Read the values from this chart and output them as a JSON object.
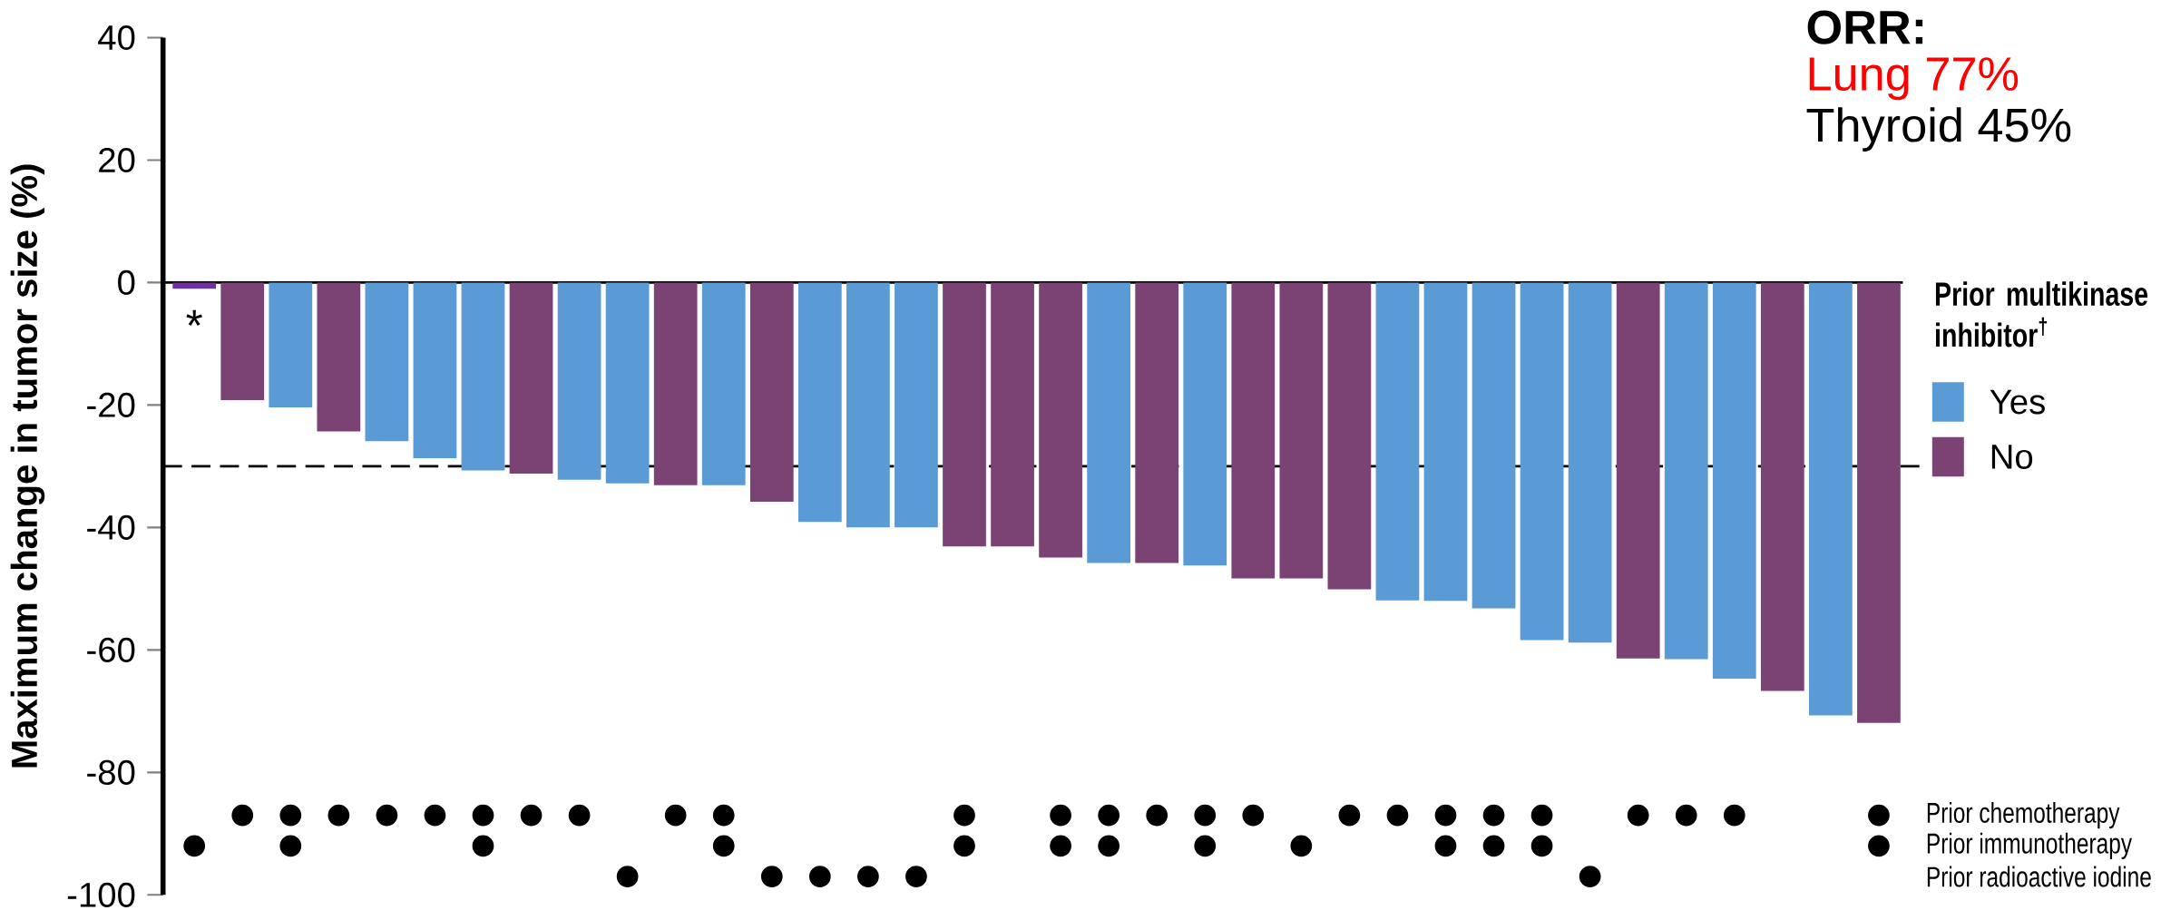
{
  "chart_data": {
    "type": "bar",
    "ylabel": "Maximum change in tumor size (%)",
    "legend_title": "Prior multikinase inhibitor$^{†}$",
    "categories": [
      null,
      null,
      null,
      null,
      null,
      null,
      null,
      null,
      null,
      null,
      null,
      null,
      null,
      null,
      null,
      null,
      null,
      null,
      null,
      null,
      null,
      null,
      null,
      null,
      null,
      null,
      null,
      null,
      null,
      null,
      null,
      null,
      null,
      null,
      null,
      null
    ],
    "series": [
      {
        "name": "Yes",
        "color": "#5b9bd5",
        "values": [
          null,
          null,
          -20.4,
          null,
          -25.9,
          -28.7,
          -30.7,
          null,
          -32.2,
          -32.8,
          null,
          -33.1,
          null,
          -39.1,
          -40,
          -40,
          null,
          null,
          null,
          -45.8,
          null,
          -46.2,
          null,
          null,
          null,
          -51.9,
          -52,
          -53.2,
          -58.4,
          -58.8,
          null,
          -61.5,
          -64.7,
          null,
          -70.7,
          null
        ]
      },
      {
        "name": "No",
        "color": "#7b4373",
        "values": [
          null,
          -19.2,
          null,
          -24.3,
          null,
          null,
          null,
          -31.2,
          null,
          null,
          -33.1,
          null,
          -35.8,
          null,
          null,
          null,
          -43.1,
          -43.1,
          -44.9,
          null,
          -45.8,
          null,
          -48.3,
          -48.3,
          -50.1,
          null,
          null,
          null,
          null,
          null,
          -61.4,
          null,
          null,
          -66.7,
          null,
          -71.9
        ]
      },
      {
        "color": "#7030a0",
        "values": [
          -1,
          null,
          null,
          null,
          null,
          null,
          null,
          null,
          null,
          null,
          null,
          null,
          null,
          null,
          null,
          null,
          null,
          null,
          null,
          null,
          null,
          null,
          null,
          null,
          null,
          null,
          null,
          null,
          null,
          null,
          null,
          null,
          null,
          null,
          null,
          null
        ]
      },
      {
        "name": "Prior chemotherapy",
        "type": "scatter",
        "color": "#000000",
        "values": [
          null,
          -87,
          -87,
          -87,
          -87,
          -87,
          -87,
          -87,
          -87,
          null,
          -87,
          -87,
          null,
          null,
          null,
          null,
          -87,
          null,
          -87,
          -87,
          -87,
          -87,
          -87,
          null,
          -87,
          -87,
          -87,
          -87,
          -87,
          null,
          -87,
          -87,
          -87,
          null,
          null,
          -87
        ]
      },
      {
        "name": "Prior immunotherapy",
        "type": "scatter",
        "color": "#000000",
        "values": [
          -92,
          null,
          -92,
          null,
          null,
          null,
          -92,
          null,
          null,
          null,
          null,
          -92,
          null,
          null,
          null,
          null,
          -92,
          null,
          -92,
          -92,
          null,
          -92,
          null,
          -92,
          null,
          null,
          -92,
          -92,
          -92,
          null,
          null,
          null,
          null,
          null,
          null,
          -92
        ]
      },
      {
        "name": "Prior radioactive iodine",
        "type": "scatter",
        "color": "#000000",
        "values": [
          null,
          null,
          null,
          null,
          null,
          null,
          null,
          null,
          null,
          -97,
          null,
          null,
          -97,
          -97,
          -97,
          -97,
          null,
          null,
          null,
          null,
          null,
          null,
          null,
          null,
          null,
          null,
          null,
          null,
          null,
          -97,
          null,
          null,
          null,
          null,
          null,
          null
        ]
      }
    ],
    "ylim": [
      -100,
      40
    ],
    "yticks": [
      -100,
      -80,
      -60,
      -40,
      -20,
      0,
      20,
      40
    ],
    "ref_lines": [
      {
        "axis": "y",
        "value": -30,
        "line_style": "dashed",
        "color": "#000000"
      }
    ],
    "annotations": [
      "*",
      "ORR:",
      "Lung 77%",
      "Thyroid 45%"
    ],
    "tick_labels": "y",
    "legend": "right"
  }
}
